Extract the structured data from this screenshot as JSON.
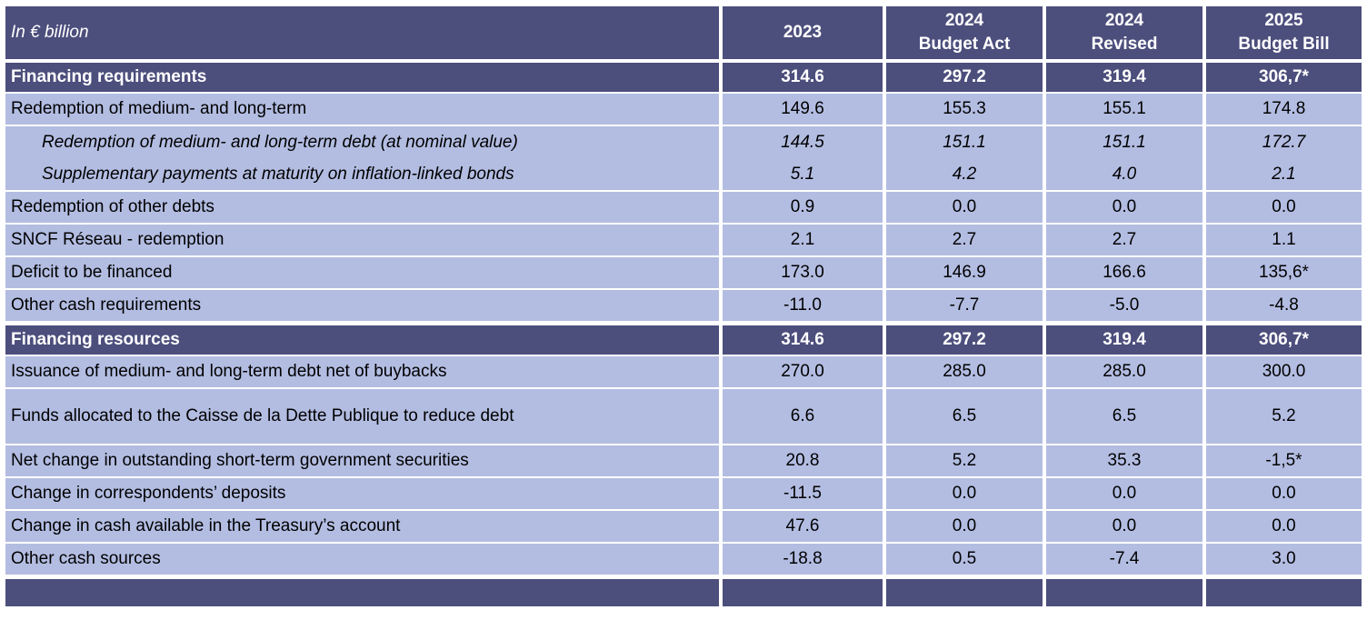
{
  "header": {
    "label": "In € billion",
    "columns": [
      {
        "line1": "2023",
        "line2": ""
      },
      {
        "line1": "2024",
        "line2": "Budget Act"
      },
      {
        "line1": "2024",
        "line2": "Revised"
      },
      {
        "line1": "2025",
        "line2": "Budget Bill"
      }
    ]
  },
  "requirements": {
    "title": "Financing requirements",
    "totals": [
      "314.6",
      "297.2",
      "319.4",
      "306,7*"
    ],
    "rows": [
      {
        "label": "Redemption of medium- and long-term",
        "values": [
          "149.6",
          "155.3",
          "155.1",
          "174.8"
        ]
      },
      {
        "label": "Redemption of medium- and long-term debt (at nominal value)",
        "values": [
          "144.5",
          "151.1",
          "151.1",
          "172.7"
        ]
      },
      {
        "label": "Supplementary payments at maturity on inflation-linked bonds",
        "values": [
          "5.1",
          "4.2",
          "4.0",
          "2.1"
        ]
      },
      {
        "label": "Redemption of other debts",
        "values": [
          "0.9",
          "0.0",
          "0.0",
          "0.0"
        ]
      },
      {
        "label": "SNCF Réseau - redemption",
        "values": [
          "2.1",
          "2.7",
          "2.7",
          "1.1"
        ]
      },
      {
        "label": "Deficit to be financed",
        "values": [
          "173.0",
          "146.9",
          "166.6",
          "135,6*"
        ]
      },
      {
        "label": "Other cash requirements",
        "values": [
          "-11.0",
          "-7.7",
          "-5.0",
          "-4.8"
        ]
      }
    ]
  },
  "resources": {
    "title": "Financing resources",
    "totals": [
      "314.6",
      "297.2",
      "319.4",
      "306,7*"
    ],
    "rows": [
      {
        "label": "Issuance of medium- and long-term debt net of buybacks",
        "values": [
          "270.0",
          "285.0",
          "285.0",
          "300.0"
        ]
      },
      {
        "label": "Funds allocated to the Caisse de la Dette Publique to reduce debt",
        "values": [
          "6.6",
          "6.5",
          "6.5",
          "5.2"
        ]
      },
      {
        "label": "Net change in outstanding short-term government securities",
        "values": [
          "20.8",
          "5.2",
          "35.3",
          "-1,5*"
        ]
      },
      {
        "label": "Change in correspondents’ deposits",
        "values": [
          "-11.5",
          "0.0",
          "0.0",
          "0.0"
        ]
      },
      {
        "label": "Change in cash available in the Treasury’s account",
        "values": [
          "47.6",
          "0.0",
          "0.0",
          "0.0"
        ]
      },
      {
        "label": "Other cash sources",
        "values": [
          "-18.8",
          "0.5",
          "-7.4",
          "3.0"
        ]
      }
    ]
  }
}
